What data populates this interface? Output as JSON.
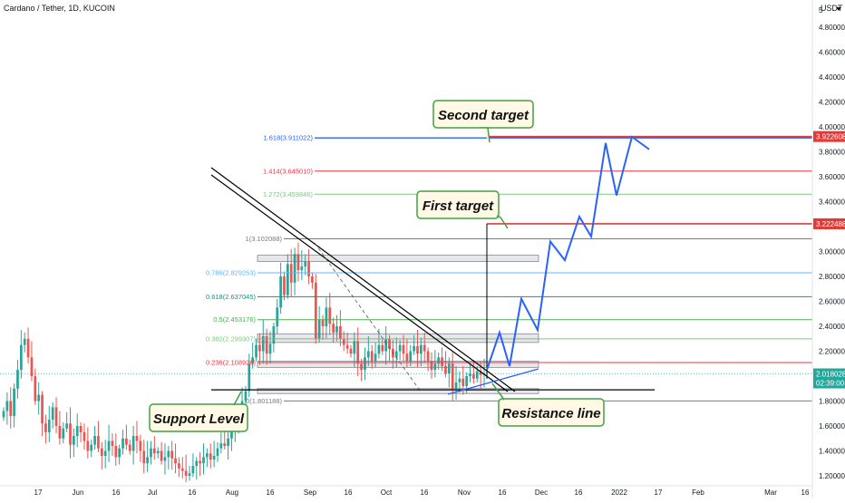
{
  "header": {
    "title": "Cardano / Tether, 1D, KUCOIN",
    "currency": "USDT",
    "currency_icon": "dropdown-icon"
  },
  "colors": {
    "up": "#26a69a",
    "down": "#ef5350",
    "target_line": "#e53935",
    "projection": "#2962ff",
    "fib_1": "#787b86",
    "fib_0786": "#64b5f6",
    "fib_0618": "#089981",
    "fib_05": "#4caf50",
    "fib_0382": "#81c784",
    "fib_0236": "#f23645",
    "fib_1618": "#2962ff",
    "fib_1414": "#f23645",
    "fib_1272": "#81c784",
    "callout_bg": "#fff9e6",
    "callout_border": "#43a047"
  },
  "chart_data": {
    "type": "candlestick",
    "y_axis": {
      "scale": "linear",
      "range": [
        1.15,
        5.02
      ],
      "ticks": [
        "1.200000",
        "1.400000",
        "1.600000",
        "1.800000",
        "2.000000",
        "2.200000",
        "2.400000",
        "2.600000",
        "2.800000",
        "3.000000",
        "3.200000",
        "3.400000",
        "3.600000",
        "3.800000",
        "4.000000",
        "4.200000",
        "4.400000",
        "4.600000",
        "4.800000"
      ],
      "top_label": "5"
    },
    "x_axis": {
      "ticks": [
        "17",
        "Jun",
        "16",
        "Jul",
        "16",
        "Aug",
        "16",
        "Sep",
        "16",
        "Oct",
        "16",
        "Nov",
        "16",
        "Dec",
        "16",
        "2022",
        "17",
        "Feb",
        "Mar",
        "16"
      ]
    },
    "price_badges": [
      {
        "value": "3.922608",
        "color": "#e53935"
      },
      {
        "value": "3.222488",
        "color": "#e53935"
      },
      {
        "value": "2.018028",
        "value2": "02:39:00",
        "color": "#26a69a"
      }
    ],
    "fibonacci": [
      {
        "level": "1",
        "label": "1(3.102088)",
        "price": 3.102088,
        "color_key": "fib_1"
      },
      {
        "level": "0.786",
        "label": "0.786(2.829253)",
        "price": 2.829253,
        "color_key": "fib_0786"
      },
      {
        "level": "0.618",
        "label": "0.618(2.637045)",
        "price": 2.637045,
        "color_key": "fib_0618"
      },
      {
        "level": "0.5",
        "label": "0.5(2.453176)",
        "price": 2.453176,
        "color_key": "fib_05"
      },
      {
        "level": "0.382",
        "label": "0.382(2.299307)",
        "price": 2.299307,
        "color_key": "fib_0382"
      },
      {
        "level": "0.236",
        "label": "0.236(2.108926)",
        "price": 2.108926,
        "color_key": "fib_0236"
      },
      {
        "level": "0",
        "label": "0(1.801188)",
        "price": 1.801188,
        "color_key": "fib_1"
      },
      {
        "level": "1.618",
        "label": "1.618(3.911022)",
        "price": 3.911022,
        "color_key": "fib_1618"
      },
      {
        "level": "1.414",
        "label": "1.414(3.645010)",
        "price": 3.64501,
        "color_key": "fib_1414"
      },
      {
        "level": "1.272",
        "label": "1.272(3.459846)",
        "price": 3.459846,
        "color_key": "fib_1272"
      }
    ],
    "targets": [
      {
        "price": 3.922608
      },
      {
        "price": 3.222488
      }
    ],
    "support_price": 1.89,
    "projection_prices": [
      2.05,
      2.35,
      2.08,
      2.62,
      2.37,
      3.08,
      2.93,
      3.28,
      3.12,
      3.87,
      3.45,
      3.92,
      3.82
    ],
    "candles_close": [
      1.72,
      1.8,
      1.68,
      1.9,
      2.05,
      2.25,
      2.3,
      2.15,
      2.0,
      1.8,
      1.85,
      1.62,
      1.55,
      1.65,
      1.75,
      1.6,
      1.5,
      1.58,
      1.62,
      1.45,
      1.52,
      1.6,
      1.55,
      1.48,
      1.4,
      1.45,
      1.52,
      1.42,
      1.36,
      1.4,
      1.48,
      1.44,
      1.35,
      1.42,
      1.5,
      1.45,
      1.4,
      1.52,
      1.48,
      1.4,
      1.3,
      1.35,
      1.42,
      1.38,
      1.4,
      1.32,
      1.35,
      1.4,
      1.34,
      1.3,
      1.26,
      1.24,
      1.2,
      1.22,
      1.28,
      1.32,
      1.3,
      1.35,
      1.38,
      1.33,
      1.36,
      1.42,
      1.46,
      1.44,
      1.5,
      1.56,
      1.62,
      1.7,
      1.8,
      1.88,
      2.1,
      2.15,
      2.25,
      2.2,
      2.32,
      2.18,
      2.26,
      2.4,
      2.55,
      2.8,
      2.65,
      2.9,
      2.75,
      2.98,
      2.85,
      2.88,
      2.92,
      2.8,
      2.75,
      2.3,
      2.45,
      2.4,
      2.55,
      2.42,
      2.35,
      2.4,
      2.3,
      2.25,
      2.22,
      2.18,
      2.28,
      2.1,
      2.05,
      2.15,
      2.2,
      2.12,
      2.18,
      2.25,
      2.2,
      2.3,
      2.22,
      2.15,
      2.2,
      2.25,
      2.18,
      2.12,
      2.2,
      2.24,
      2.18,
      2.25,
      2.2,
      2.12,
      2.05,
      2.1,
      2.15,
      2.08,
      2.02,
      2.1,
      1.9,
      1.95,
      1.98,
      1.92,
      2.0,
      2.02,
      1.98,
      2.04,
      2.01,
      2.02
    ]
  },
  "annotations": {
    "second_target": "Second target",
    "first_target": "First target",
    "support_level": "Support Level",
    "resistance_line": "Resistance line"
  }
}
